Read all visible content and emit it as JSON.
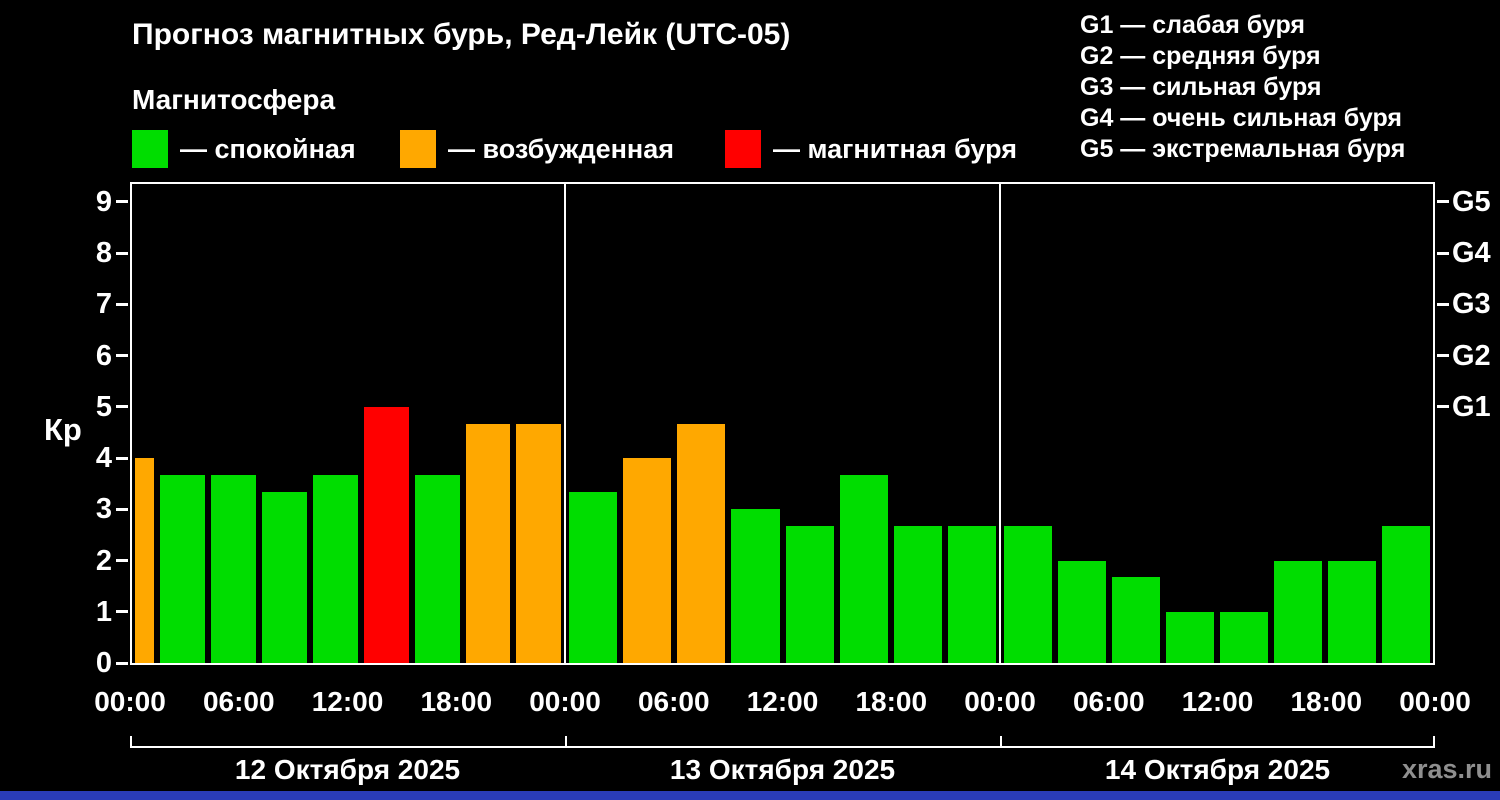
{
  "header": {
    "title": "Прогноз магнитных бурь, Ред-Лейк (UTC-05)",
    "subtitle": "Магнитосфера"
  },
  "legend": {
    "items": [
      {
        "label": "— спокойная",
        "level": "quiet"
      },
      {
        "label": "— возбужденная",
        "level": "excited"
      },
      {
        "label": "— магнитная буря",
        "level": "storm"
      }
    ]
  },
  "g_legend": {
    "lines": [
      "G1 — слабая буря",
      "G2 — средняя буря",
      "G3 — сильная буря",
      "G4 — очень сильная буря",
      "G5 — экстремальная буря"
    ]
  },
  "watermark": "xras.ru",
  "colors": {
    "background": "#000000",
    "axis": "#ffffff",
    "text": "#ffffff",
    "quiet": "#00dd00",
    "excited": "#ffa800",
    "storm": "#ff0000",
    "watermark": "#8f8f8f",
    "bottom_strip": "#2a3cb8"
  },
  "chart_data": {
    "type": "bar",
    "title": "Прогноз магнитных бурь, Ред-Лейк (UTC-05)",
    "ylabel": "Кр",
    "ylim": [
      0,
      9
    ],
    "bar_interval_hours": 3,
    "grid": false,
    "y_ticks": [
      0,
      1,
      2,
      3,
      4,
      5,
      6,
      7,
      8,
      9
    ],
    "right_axis": [
      {
        "kp": 9,
        "label": "G5"
      },
      {
        "kp": 8,
        "label": "G4"
      },
      {
        "kp": 7,
        "label": "G3"
      },
      {
        "kp": 6,
        "label": "G2"
      },
      {
        "kp": 5,
        "label": "G1"
      }
    ],
    "x_tick_labels": [
      "00:00",
      "06:00",
      "12:00",
      "18:00",
      "00:00",
      "06:00",
      "12:00",
      "18:00",
      "00:00",
      "06:00",
      "12:00",
      "18:00",
      "00:00"
    ],
    "days": [
      {
        "date": "12 Октября 2025",
        "bars": [
          {
            "kp": 4.0,
            "level": "excited",
            "w": 0.42
          },
          {
            "kp": 3.67,
            "level": "quiet",
            "w": 1
          },
          {
            "kp": 3.67,
            "level": "quiet",
            "w": 1
          },
          {
            "kp": 3.33,
            "level": "quiet",
            "w": 1
          },
          {
            "kp": 3.67,
            "level": "quiet",
            "w": 1
          },
          {
            "kp": 5.0,
            "level": "storm",
            "w": 1
          },
          {
            "kp": 3.67,
            "level": "quiet",
            "w": 1
          },
          {
            "kp": 4.67,
            "level": "excited",
            "w": 1
          },
          {
            "kp": 4.67,
            "level": "excited",
            "w": 1
          }
        ]
      },
      {
        "date": "13 Октября 2025",
        "bars": [
          {
            "kp": 3.33,
            "level": "quiet",
            "w": 1
          },
          {
            "kp": 4.0,
            "level": "excited",
            "w": 1
          },
          {
            "kp": 4.67,
            "level": "excited",
            "w": 1
          },
          {
            "kp": 3.0,
            "level": "quiet",
            "w": 1
          },
          {
            "kp": 2.67,
            "level": "quiet",
            "w": 1
          },
          {
            "kp": 3.67,
            "level": "quiet",
            "w": 1
          },
          {
            "kp": 2.67,
            "level": "quiet",
            "w": 1
          },
          {
            "kp": 2.67,
            "level": "quiet",
            "w": 1
          }
        ]
      },
      {
        "date": "14 Октября 2025",
        "bars": [
          {
            "kp": 2.67,
            "level": "quiet",
            "w": 1
          },
          {
            "kp": 2.0,
            "level": "quiet",
            "w": 1
          },
          {
            "kp": 1.67,
            "level": "quiet",
            "w": 1
          },
          {
            "kp": 1.0,
            "level": "quiet",
            "w": 1
          },
          {
            "kp": 1.0,
            "level": "quiet",
            "w": 1
          },
          {
            "kp": 2.0,
            "level": "quiet",
            "w": 1
          },
          {
            "kp": 2.0,
            "level": "quiet",
            "w": 1
          },
          {
            "kp": 2.67,
            "level": "quiet",
            "w": 1
          }
        ]
      }
    ]
  }
}
